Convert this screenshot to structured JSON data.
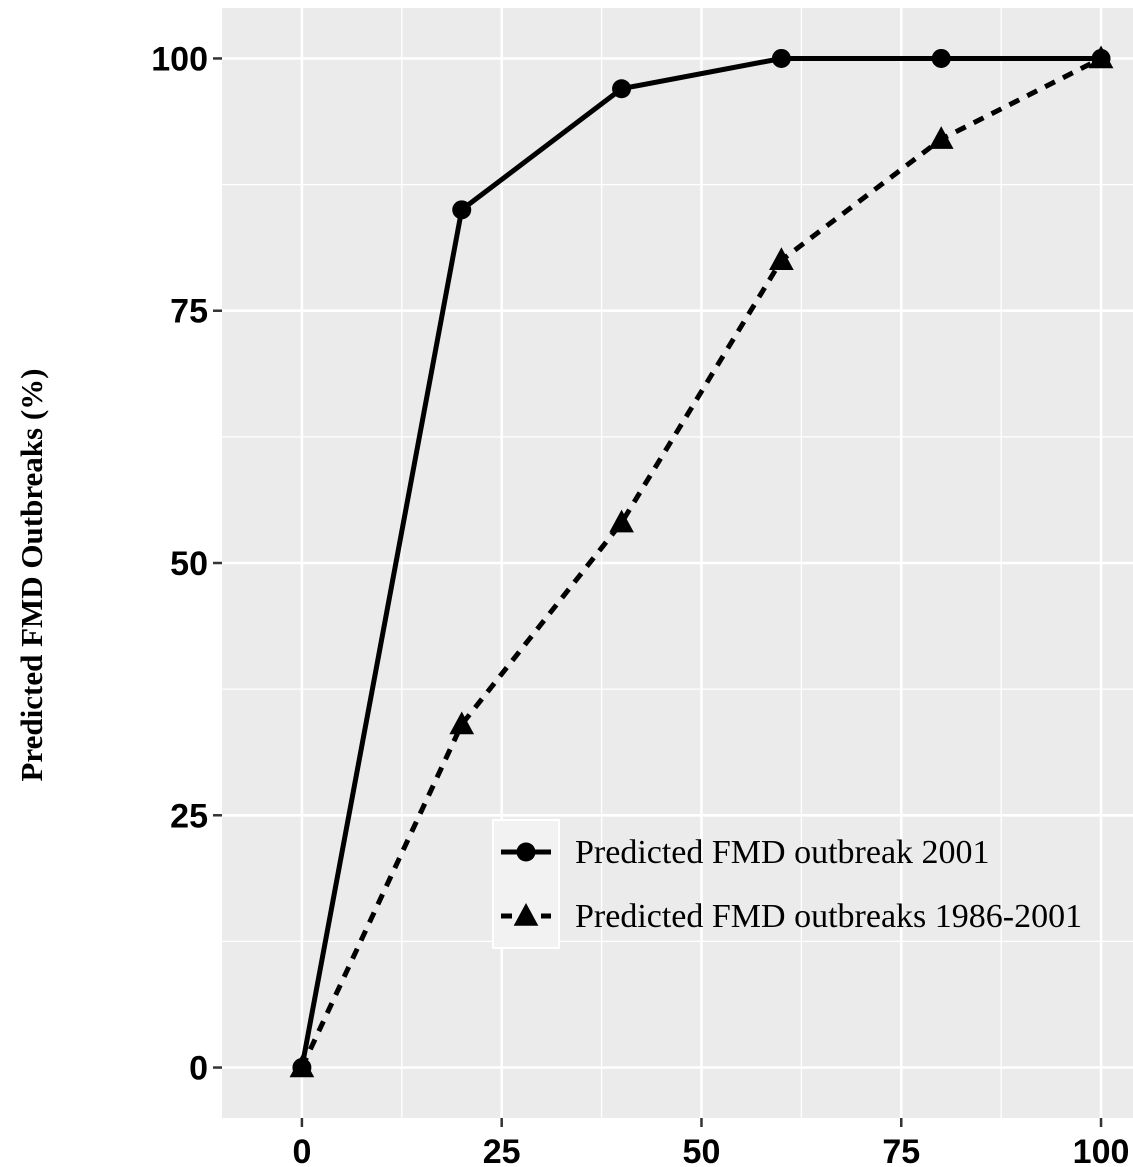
{
  "chart_data": {
    "type": "line",
    "title": "",
    "xlabel": "",
    "ylabel": "Predicted FMD Outbreaks (%)",
    "xlim": [
      -10,
      104
    ],
    "ylim": [
      -5,
      105
    ],
    "x_ticks": [
      0,
      25,
      50,
      75,
      100
    ],
    "y_ticks": [
      0,
      25,
      50,
      75,
      100
    ],
    "grid": true,
    "legend_position": "bottom-right",
    "series": [
      {
        "name": "Predicted FMD outbreak 2001",
        "marker": "circle",
        "line_style": "solid",
        "color": "#000000",
        "x": [
          0,
          20,
          40,
          60,
          80,
          100
        ],
        "y": [
          0,
          85,
          97,
          100,
          100,
          100
        ]
      },
      {
        "name": "Predicted FMD outbreaks 1986-2001",
        "marker": "triangle",
        "line_style": "dashed",
        "color": "#000000",
        "x": [
          0,
          20,
          40,
          60,
          80,
          100
        ],
        "y": [
          0,
          34,
          54,
          80,
          92,
          100
        ]
      }
    ]
  },
  "colors": {
    "panel_background": "#ebebeb",
    "grid": "#ffffff",
    "ink": "#000000"
  }
}
